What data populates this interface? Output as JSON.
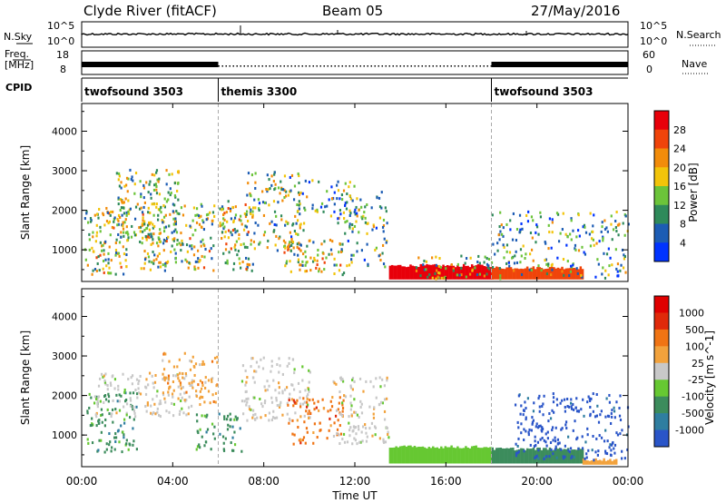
{
  "header": {
    "station": "Clyde River (fitACF)",
    "beam": "Beam 05",
    "date": "27/May/2016"
  },
  "top_panels": {
    "nsky": {
      "label": "N.Sky",
      "left_ticks": [
        "10^5",
        "10^0"
      ],
      "right_label": "N.Search",
      "right_ticks": [
        "10^5",
        "10^0"
      ]
    },
    "freq": {
      "label_top": "Freq.",
      "label_bottom": "[MHz]",
      "left_ticks": [
        "18",
        "8"
      ],
      "right_label": "Nave",
      "right_ticks": [
        "60",
        "0"
      ]
    },
    "cpid": {
      "label": "CPID",
      "segments": [
        {
          "name": "twofsound 3503",
          "start_hour": 0
        },
        {
          "name": "themis 3300",
          "start_hour": 6
        },
        {
          "name": "twofsound 3503",
          "start_hour": 18
        }
      ]
    }
  },
  "time_axis": {
    "label": "Time UT",
    "ticks": [
      "00:00",
      "04:00",
      "08:00",
      "12:00",
      "16:00",
      "20:00",
      "00:00"
    ],
    "range_hours": [
      0,
      24
    ]
  },
  "chart_data": [
    {
      "type": "heatmap",
      "quantity": "Power",
      "ylabel": "Slant Range [km]",
      "yticks": [
        "1000",
        "2000",
        "3000",
        "4000"
      ],
      "ylim": [
        200,
        4700
      ],
      "colorbar_label": "Power [dB]",
      "colorbar_ticks": [
        "28",
        "24",
        "20",
        "16",
        "12",
        "8",
        "4"
      ],
      "colors": [
        "#0033ff",
        "#1c5cb4",
        "#2f8a5a",
        "#6cc43a",
        "#f2c40a",
        "#f28c0a",
        "#f0440a",
        "#e8000a"
      ],
      "scatter_regions": [
        {
          "t": [
            0.1,
            2.0
          ],
          "r": [
            400,
            2100
          ],
          "intensity": 0.6
        },
        {
          "t": [
            1.5,
            4.3
          ],
          "r": [
            1200,
            3100
          ],
          "intensity": 0.5
        },
        {
          "t": [
            2.5,
            5.8
          ],
          "r": [
            500,
            2200
          ],
          "intensity": 0.55
        },
        {
          "t": [
            6.0,
            7.5
          ],
          "r": [
            500,
            2300
          ],
          "intensity": 0.6
        },
        {
          "t": [
            7.2,
            9.6
          ],
          "r": [
            1000,
            3000
          ],
          "intensity": 0.45
        },
        {
          "t": [
            8.8,
            11.5
          ],
          "r": [
            400,
            1300
          ],
          "intensity": 0.6
        },
        {
          "t": [
            9.5,
            12.5
          ],
          "r": [
            1500,
            2800
          ],
          "intensity": 0.3
        },
        {
          "t": [
            11.5,
            13.4
          ],
          "r": [
            600,
            2500
          ],
          "intensity": 0.35
        },
        {
          "t": [
            14.5,
            18.0
          ],
          "r": [
            300,
            900
          ],
          "intensity": 0.5
        },
        {
          "t": [
            18.0,
            24.0
          ],
          "r": [
            300,
            2000
          ],
          "intensity": 0.35
        }
      ],
      "bands": [
        {
          "t": [
            13.5,
            18.0
          ],
          "r": [
            250,
            600
          ],
          "value": 28
        },
        {
          "t": [
            18.0,
            22.0
          ],
          "r": [
            250,
            550
          ],
          "value": 24
        }
      ]
    },
    {
      "type": "heatmap",
      "quantity": "Velocity",
      "ylabel": "Slant Range [km]",
      "yticks": [
        "1000",
        "2000",
        "3000",
        "4000"
      ],
      "ylim": [
        200,
        4700
      ],
      "colorbar_label": "Velocity [m s^-1]",
      "colorbar_ticks": [
        "1000",
        "500",
        "100",
        "25",
        "-25",
        "-100",
        "-500",
        "-1000"
      ],
      "colors": [
        "#2a55c8",
        "#2f7ea0",
        "#3c8c5c",
        "#66c832",
        "#c8c8c8",
        "#f2a23c",
        "#f07414",
        "#e02a0a",
        "#e00000"
      ],
      "scatter_regions": [
        {
          "t": [
            0.2,
            2.5
          ],
          "r": [
            600,
            2100
          ],
          "c": 2
        },
        {
          "t": [
            0.5,
            5.0
          ],
          "r": [
            1500,
            2600
          ],
          "c": 4
        },
        {
          "t": [
            3.5,
            6.0
          ],
          "r": [
            1800,
            3100
          ],
          "c": 5
        },
        {
          "t": [
            5.0,
            7.0
          ],
          "r": [
            600,
            1600
          ],
          "c": 2
        },
        {
          "t": [
            7.0,
            10.0
          ],
          "r": [
            1400,
            3000
          ],
          "c": 4
        },
        {
          "t": [
            9.0,
            11.5
          ],
          "r": [
            800,
            2000
          ],
          "c": 6
        },
        {
          "t": [
            11.0,
            13.5
          ],
          "r": [
            800,
            2500
          ],
          "c": 4
        },
        {
          "t": [
            19.0,
            24.0
          ],
          "r": [
            400,
            2100
          ],
          "c": 0
        }
      ],
      "bands": [
        {
          "t": [
            13.5,
            18.0
          ],
          "r": [
            280,
            700
          ],
          "value_index": 3
        },
        {
          "t": [
            18.0,
            22.0
          ],
          "r": [
            280,
            650
          ],
          "value_index": 2
        },
        {
          "t": [
            22.0,
            23.5
          ],
          "r": [
            250,
            380
          ],
          "value_index": 5
        }
      ]
    }
  ]
}
